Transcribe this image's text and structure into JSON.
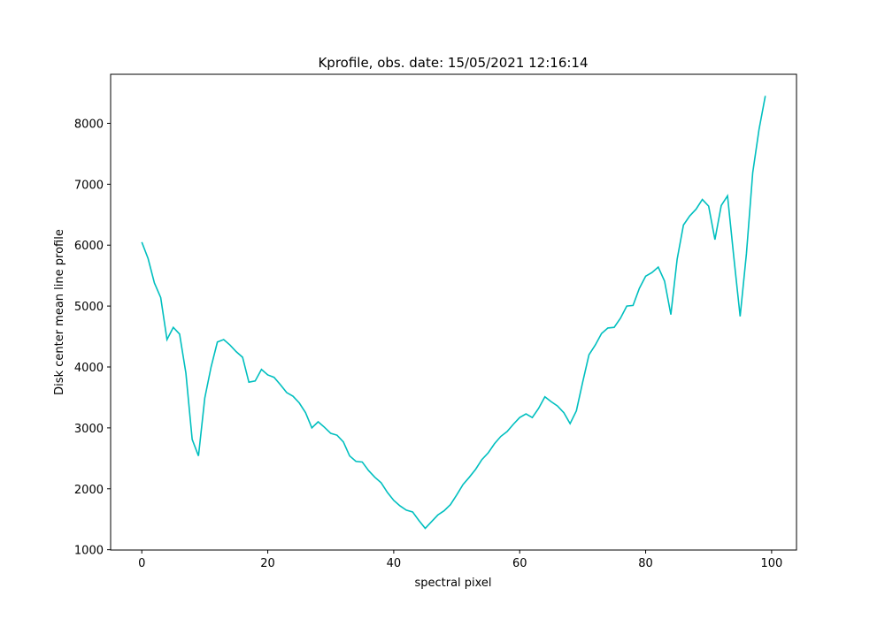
{
  "chart_data": {
    "type": "line",
    "title": "Kprofile, obs. date: 15/05/2021 12:16:14",
    "xlabel": "spectral pixel",
    "ylabel": "Disk center mean line profile",
    "x": [
      0,
      1,
      2,
      3,
      4,
      5,
      6,
      7,
      8,
      9,
      10,
      11,
      12,
      13,
      14,
      15,
      16,
      17,
      18,
      19,
      20,
      21,
      22,
      23,
      24,
      25,
      26,
      27,
      28,
      29,
      30,
      31,
      32,
      33,
      34,
      35,
      36,
      37,
      38,
      39,
      40,
      41,
      42,
      43,
      44,
      45,
      46,
      47,
      48,
      49,
      50,
      51,
      52,
      53,
      54,
      55,
      56,
      57,
      58,
      59,
      60,
      61,
      62,
      63,
      64,
      65,
      66,
      67,
      68,
      69,
      70,
      71,
      72,
      73,
      74,
      75,
      76,
      77,
      78,
      79,
      80,
      81,
      82,
      83,
      84,
      85,
      86,
      87,
      88,
      89,
      90,
      91,
      92,
      93,
      94,
      95,
      96,
      97,
      98,
      99
    ],
    "series": [
      {
        "color": "#00bfbf",
        "values": [
          6050,
          5780,
          5380,
          5140,
          4450,
          4650,
          4540,
          3900,
          2810,
          2540,
          3490,
          4000,
          4410,
          4450,
          4360,
          4250,
          4160,
          3750,
          3770,
          3960,
          3870,
          3830,
          3710,
          3580,
          3520,
          3410,
          3250,
          3000,
          3100,
          3010,
          2910,
          2880,
          2770,
          2540,
          2450,
          2440,
          2300,
          2190,
          2100,
          1940,
          1810,
          1720,
          1650,
          1620,
          1480,
          1350,
          1460,
          1570,
          1640,
          1740,
          1900,
          2070,
          2190,
          2320,
          2480,
          2590,
          2740,
          2860,
          2940,
          3060,
          3170,
          3230,
          3170,
          3320,
          3510,
          3430,
          3360,
          3250,
          3070,
          3280,
          3750,
          4200,
          4360,
          4550,
          4640,
          4650,
          4800,
          5000,
          5010,
          5290,
          5490,
          5550,
          5640,
          5410,
          4860,
          5770,
          6330,
          6480,
          6590,
          6750,
          6640,
          6090,
          6650,
          6810,
          5800,
          4830,
          5860,
          7190,
          7900,
          8450
        ]
      }
    ],
    "xlim": [
      -4.95,
      103.95
    ],
    "ylim": [
      995,
      8805
    ],
    "xticks": [
      0,
      20,
      40,
      60,
      80,
      100
    ],
    "yticks": [
      1000,
      2000,
      3000,
      4000,
      5000,
      6000,
      7000,
      8000
    ]
  }
}
